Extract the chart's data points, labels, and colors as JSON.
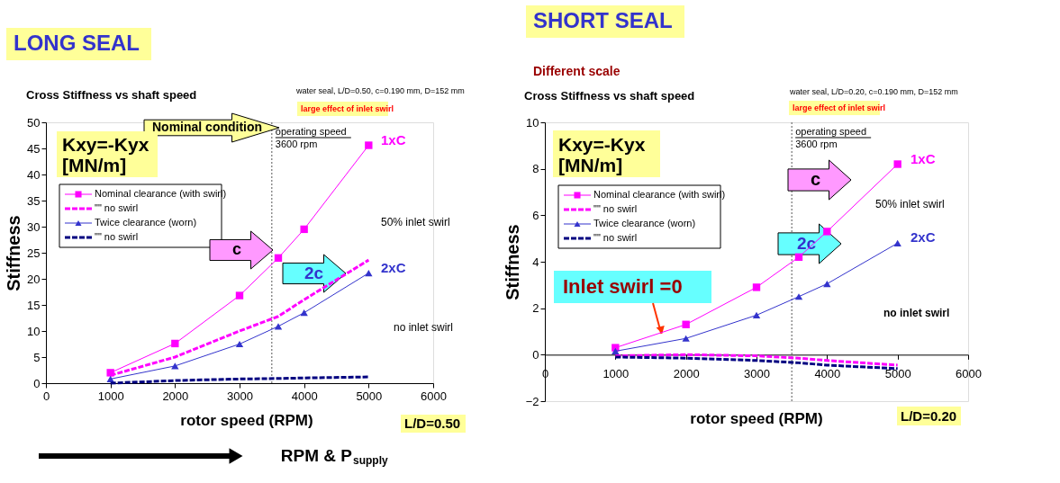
{
  "chart_data": [
    {
      "type": "line",
      "title": "LONG SEAL",
      "subtitle": "Cross Stiffness vs shaft speed",
      "xlabel": "rotor speed (RPM)",
      "ylabel": "Stiffness",
      "x": [
        1000,
        2000,
        3000,
        3600,
        4000,
        5000
      ],
      "xlim": [
        0,
        6000
      ],
      "xticks": [
        0,
        1000,
        2000,
        3000,
        4000,
        5000,
        6000
      ],
      "ylim": [
        0,
        50
      ],
      "yticks": [
        0,
        5,
        10,
        15,
        20,
        25,
        30,
        35,
        40,
        45,
        50
      ],
      "legend": "top left",
      "series": [
        {
          "name": "Nominal clearance (with swirl)",
          "color": "#ff00ff",
          "marker": "square",
          "line_style": "solid",
          "values": [
            2,
            7.6,
            16.8,
            24,
            29.5,
            45.6
          ]
        },
        {
          "name": "\"\" no swirl",
          "color": "#ff00ff",
          "marker": "none",
          "line_style": "dashed",
          "values": [
            1.5,
            5,
            10,
            12.8,
            16,
            23.6
          ]
        },
        {
          "name": "Twice clearance (worn)",
          "color": "#3333cc",
          "marker": "triangle",
          "line_style": "solid",
          "values": [
            0.8,
            3.3,
            7.5,
            10.9,
            13.5,
            21.1
          ]
        },
        {
          "name": "\"\" no swirl",
          "color": "#000080",
          "marker": "none",
          "line_style": "dashed",
          "values": [
            0,
            0.5,
            0.8,
            0.9,
            1.0,
            1.2
          ]
        }
      ],
      "ref_lines": [
        {
          "axis": "x",
          "value": 3500,
          "label": "operating speed\n3600 rpm",
          "line_style": "dotted",
          "color": "#555555"
        }
      ],
      "annotations": [
        "water seal, L/D=0.50, c=0.190 mm, D=152 mm",
        "large effect of inlet swirl",
        "Nominal condition",
        "Kxy=-Kyx\n[MN/m]",
        "c",
        "2c",
        "50% inlet swirl",
        "no inlet swirl",
        "L/D=0.50",
        "RPM & P$_{supply}$",
        "1xC",
        "2xC"
      ]
    },
    {
      "type": "line",
      "title": "SHORT SEAL",
      "subtitle": "Cross Stiffness vs shaft speed",
      "xlabel": "rotor speed (RPM)",
      "ylabel": "Stiffness",
      "x": [
        1000,
        2000,
        3000,
        3600,
        4000,
        5000
      ],
      "xlim": [
        0,
        6000
      ],
      "xticks": [
        0,
        1000,
        2000,
        3000,
        4000,
        5000,
        6000
      ],
      "ylim": [
        -2,
        10
      ],
      "yticks": [
        -2,
        0,
        2,
        4,
        6,
        8,
        10
      ],
      "legend": "top left",
      "series": [
        {
          "name": "Nominal clearance (with swirl)",
          "color": "#ff00ff",
          "marker": "square",
          "line_style": "solid",
          "values": [
            0.3,
            1.3,
            2.9,
            4.2,
            5.3,
            8.2
          ]
        },
        {
          "name": "\"\" no swirl",
          "color": "#ff00ff",
          "marker": "none",
          "line_style": "dashed",
          "values": [
            -0.05,
            0.0,
            -0.05,
            -0.15,
            -0.25,
            -0.45
          ]
        },
        {
          "name": "Twice clearance (worn)",
          "color": "#3333cc",
          "marker": "triangle",
          "line_style": "solid",
          "values": [
            0.15,
            0.7,
            1.7,
            2.5,
            3.05,
            4.8
          ]
        },
        {
          "name": "\"\" no swirl",
          "color": "#000080",
          "marker": "none",
          "line_style": "dashed",
          "values": [
            -0.1,
            -0.15,
            -0.25,
            -0.35,
            -0.45,
            -0.6
          ]
        }
      ],
      "ref_lines": [
        {
          "axis": "x",
          "value": 3500,
          "label": "operating speed\n3600 rpm",
          "line_style": "dotted",
          "color": "#555555"
        }
      ],
      "annotations": [
        "Different scale",
        "water seal, L/D=0.20, c=0.190 mm, D=152 mm",
        "large effect of inlet swirl",
        "Kxy=-Kyx\n[MN/m]",
        "c",
        "2c",
        "50% inlet swirl",
        "no inlet swirl",
        "L/D=0.20",
        {
          "text": "Inlet swirl =0",
          "x": 1650,
          "y": 0.9
        },
        "1xC",
        "2xC"
      ]
    }
  ]
}
